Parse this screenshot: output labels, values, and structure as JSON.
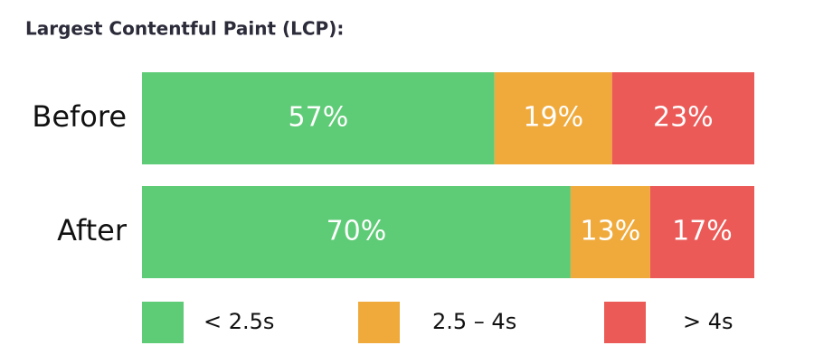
{
  "chart_data": {
    "type": "bar",
    "orientation": "horizontal",
    "stacked": true,
    "title": "Largest Contentful Paint (LCP):",
    "categories": [
      "Before",
      "After"
    ],
    "series": [
      {
        "name": "< 2.5s",
        "color": "#5ecb76",
        "values": [
          57,
          70
        ],
        "value_labels": [
          "57%",
          "70%"
        ]
      },
      {
        "name": "2.5 – 4s",
        "color": "#f0aa3c",
        "values": [
          19,
          13
        ],
        "value_labels": [
          "19%",
          "13%"
        ]
      },
      {
        "name": "> 4s",
        "color": "#eb5a57",
        "values": [
          23,
          17
        ],
        "value_labels": [
          "23%",
          "17%"
        ]
      }
    ],
    "legend": "bottom"
  }
}
